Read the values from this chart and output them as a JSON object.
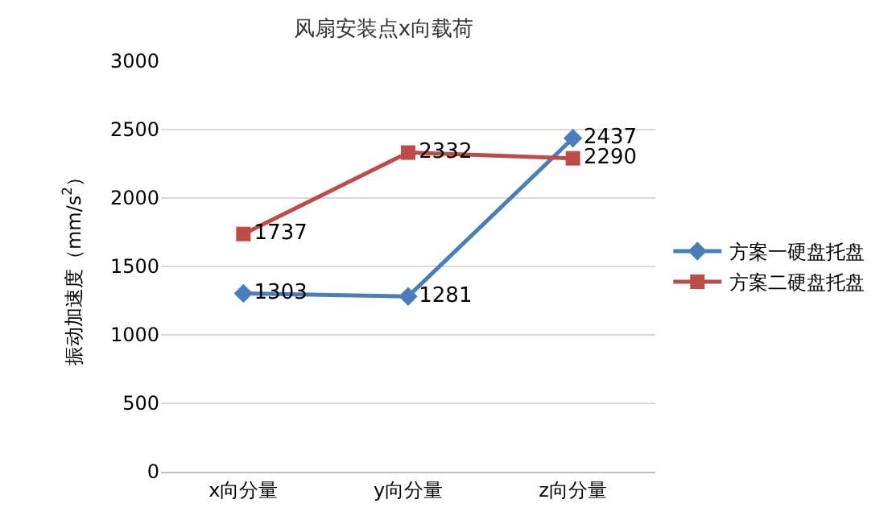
{
  "chart_data": {
    "type": "line",
    "title": "风扇安装点x向载荷",
    "ylabel": "振动加速度（mm/s$^{2}$）",
    "categories": [
      "x向分量",
      "y向分量",
      "z向分量"
    ],
    "series": [
      {
        "name": "方案一硬盘托盘",
        "color": "#4a7ebb",
        "values": [
          1303,
          1281,
          2437
        ],
        "marker": "diamond"
      },
      {
        "name": "方案二硬盘托盘",
        "color": "#be4b48",
        "values": [
          1737,
          2332,
          2290
        ],
        "marker": "square"
      }
    ],
    "ylim": [
      0,
      3000
    ],
    "yticks": [
      0,
      500,
      1000,
      1500,
      2000,
      2500,
      3000
    ],
    "grid": "y",
    "legend": "right",
    "data_labels": true,
    "line_style": "solid"
  }
}
